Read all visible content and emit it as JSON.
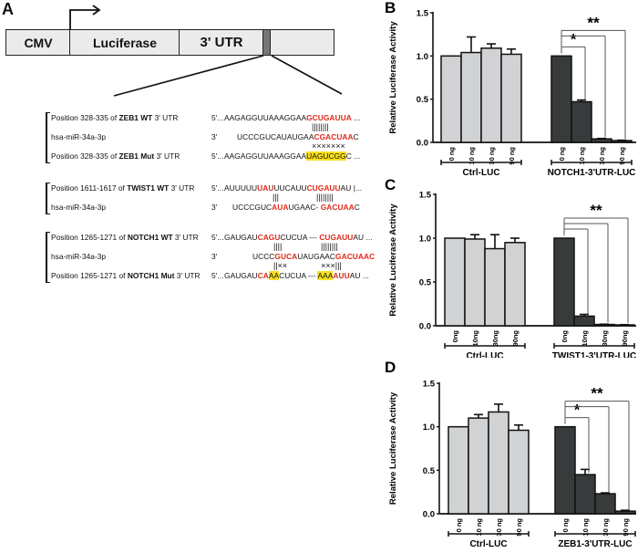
{
  "panels": {
    "A": {
      "letter": "A",
      "construct": {
        "segments": [
          "CMV",
          "Luciferase",
          "3' UTR",
          ""
        ],
        "arrow": "promoter-arrow"
      },
      "alignments": [
        {
          "rows": [
            {
              "label_pre": "Position 328-335 of ",
              "label_bold": "ZEB1 WT",
              "label_post": " 3' UTR",
              "prefix": "5'...",
              "parts": [
                {
                  "t": " AAGAGGUUAAAGGAA",
                  "s": "n"
                },
                {
                  "t": "GCUGAUUA",
                  "s": "r"
                },
                {
                  "t": " ...",
                  "s": "n"
                }
              ]
            },
            {
              "pairs": "||||||||"
            },
            {
              "label_pre": "hsa-miR-34a-3p",
              "label_bold": "",
              "label_post": "",
              "prefix": "3'",
              "parts": [
                {
                  "t": "UCCCGUCAUAUGAA",
                  "s": "n"
                },
                {
                  "t": "CGACUAA",
                  "s": "r"
                },
                {
                  "t": "C",
                  "s": "n"
                }
              ]
            },
            {
              "pairs": "×××××××"
            },
            {
              "label_pre": "Position 328-335 of ",
              "label_bold": "ZEB1 Mut",
              "label_post": " 3' UTR",
              "prefix": "5'...",
              "parts": [
                {
                  "t": " AAGAGGUUAAAGGAA",
                  "s": "n"
                },
                {
                  "t": "UAGUCGG",
                  "s": "h"
                },
                {
                  "t": "C ...",
                  "s": "n"
                }
              ]
            }
          ]
        },
        {
          "rows": [
            {
              "label_pre": "Position 1611-1617 of ",
              "label_bold": "TWIST1 WT",
              "label_post": " 3' UTR",
              "prefix": "5'...",
              "parts": [
                {
                  "t": " AUUUUU",
                  "s": "n"
                },
                {
                  "t": "UAU",
                  "s": "r"
                },
                {
                  "t": "UUCAUU",
                  "s": "n"
                },
                {
                  "t": "CUGAUU",
                  "s": "r"
                },
                {
                  "t": "AU |...",
                  "s": "n"
                }
              ]
            },
            {
              "pairs_a": "|||",
              "pairs_b": "||||||||"
            },
            {
              "label_pre": "hsa-miR-34a-3p",
              "label_bold": "",
              "label_post": "",
              "prefix": "3'",
              "parts": [
                {
                  "t": "UCCCGUC",
                  "s": "n"
                },
                {
                  "t": "AUA",
                  "s": "r"
                },
                {
                  "t": "UGAAC- ",
                  "s": "n"
                },
                {
                  "t": "GACUAA",
                  "s": "r"
                },
                {
                  "t": "C",
                  "s": "n"
                }
              ]
            }
          ]
        },
        {
          "rows": [
            {
              "label_pre": "Position 1265-1271 of ",
              "label_bold": "NOTCH1 WT",
              "label_post": " 3' UTR",
              "prefix": "5'...",
              "parts": [
                {
                  "t": " GAUGAU",
                  "s": "n"
                },
                {
                  "t": "CAGU",
                  "s": "r"
                },
                {
                  "t": "CUCUA --- ",
                  "s": "n"
                },
                {
                  "t": "CUGAUU",
                  "s": "r"
                },
                {
                  "t": "AU ...",
                  "s": "n"
                }
              ]
            },
            {
              "pairs_a": "||||",
              "pairs_b": "||||||||"
            },
            {
              "label_pre": "hsa-miR-34a-3p",
              "label_bold": "",
              "label_post": "",
              "prefix": "3'",
              "parts": [
                {
                  "t": "UCCC",
                  "s": "n"
                },
                {
                  "t": "GUCA",
                  "s": "r"
                },
                {
                  "t": "UAUGAAC",
                  "s": "n"
                },
                {
                  "t": "GACUAAC",
                  "s": "r"
                }
              ]
            },
            {
              "pairs_a": "||××",
              "pairs_b": "×××|||"
            },
            {
              "label_pre": "Position 1265-1271 of ",
              "label_bold": "NOTCH1 Mut",
              "label_post": " 3' UTR",
              "prefix": "5'...",
              "parts": [
                {
                  "t": " GAUGAU",
                  "s": "n"
                },
                {
                  "t": "CA",
                  "s": "r"
                },
                {
                  "t": "AA",
                  "s": "h"
                },
                {
                  "t": "CUCUA --- ",
                  "s": "n"
                },
                {
                  "t": "AAA",
                  "s": "h"
                },
                {
                  "t": "AUU",
                  "s": "r"
                },
                {
                  "t": "AU ...",
                  "s": "n"
                }
              ]
            }
          ]
        }
      ]
    }
  },
  "colors": {
    "ctrl_bar": "#d0d2d4",
    "target_bar": "#383b3c",
    "seed_red": "#e02a1a",
    "mutation_highlight": "#f8e020"
  },
  "chart_data": [
    {
      "panel": "B",
      "type": "bar",
      "ylabel": "Relative Luciferase Activity",
      "ylim": [
        0,
        1.5
      ],
      "yticks": [
        "0.0",
        "0.5",
        "1.0",
        "1.5"
      ],
      "categories": [
        "0 ng",
        "10 ng",
        "30 ng",
        "90 ng"
      ],
      "groups": [
        {
          "name": "Ctrl-LUC",
          "values": [
            1.0,
            1.04,
            1.09,
            1.02
          ],
          "errors": [
            0.0,
            0.18,
            0.05,
            0.06
          ]
        },
        {
          "name": "NOTCH1-3'UTR-LUC",
          "values": [
            1.0,
            0.47,
            0.04,
            0.02
          ],
          "errors": [
            0.0,
            0.02,
            0.005,
            0.005
          ]
        }
      ],
      "significance": [
        {
          "group": 1,
          "from": 0,
          "to": [
            1
          ],
          "label": "*"
        },
        {
          "group": 1,
          "from": 0,
          "to": [
            2,
            3
          ],
          "label": "**"
        }
      ]
    },
    {
      "panel": "C",
      "type": "bar",
      "ylabel": "Relative Luciferase Activity",
      "ylim": [
        0,
        1.5
      ],
      "yticks": [
        "0.0",
        "0.5",
        "1.0",
        "1.5"
      ],
      "categories": [
        "0ng",
        "10ng",
        "30ng",
        "90ng"
      ],
      "groups": [
        {
          "name": "Ctrl-LUC",
          "values": [
            1.0,
            0.99,
            0.88,
            0.95
          ],
          "errors": [
            0.0,
            0.05,
            0.16,
            0.05
          ]
        },
        {
          "name": "TWIST1-3'UTR-LUC",
          "values": [
            1.0,
            0.11,
            0.015,
            0.01
          ],
          "errors": [
            0.0,
            0.02,
            0.003,
            0.003
          ]
        }
      ],
      "significance": [
        {
          "group": 1,
          "from": 0,
          "to": [
            1,
            2,
            3
          ],
          "label": "**"
        }
      ]
    },
    {
      "panel": "D",
      "type": "bar",
      "ylabel": "Relative Luciferase Activity",
      "ylim": [
        0,
        1.5
      ],
      "yticks": [
        "0.0",
        "0.5",
        "1.0",
        "1.5"
      ],
      "categories": [
        "0 ng",
        "10 ng",
        "30 ng",
        "90 ng"
      ],
      "groups": [
        {
          "name": "Ctrl-LUC",
          "values": [
            1.0,
            1.1,
            1.17,
            0.96
          ],
          "errors": [
            0.0,
            0.04,
            0.09,
            0.06
          ]
        },
        {
          "name": "ZEB1-3'UTR-LUC",
          "values": [
            1.0,
            0.45,
            0.23,
            0.03
          ],
          "errors": [
            0.0,
            0.06,
            0.01,
            0.01
          ]
        }
      ],
      "significance": [
        {
          "group": 1,
          "from": 0,
          "to": [
            1
          ],
          "label": "*"
        },
        {
          "group": 1,
          "from": 0,
          "to": [
            2,
            3
          ],
          "label": "**"
        }
      ]
    }
  ]
}
